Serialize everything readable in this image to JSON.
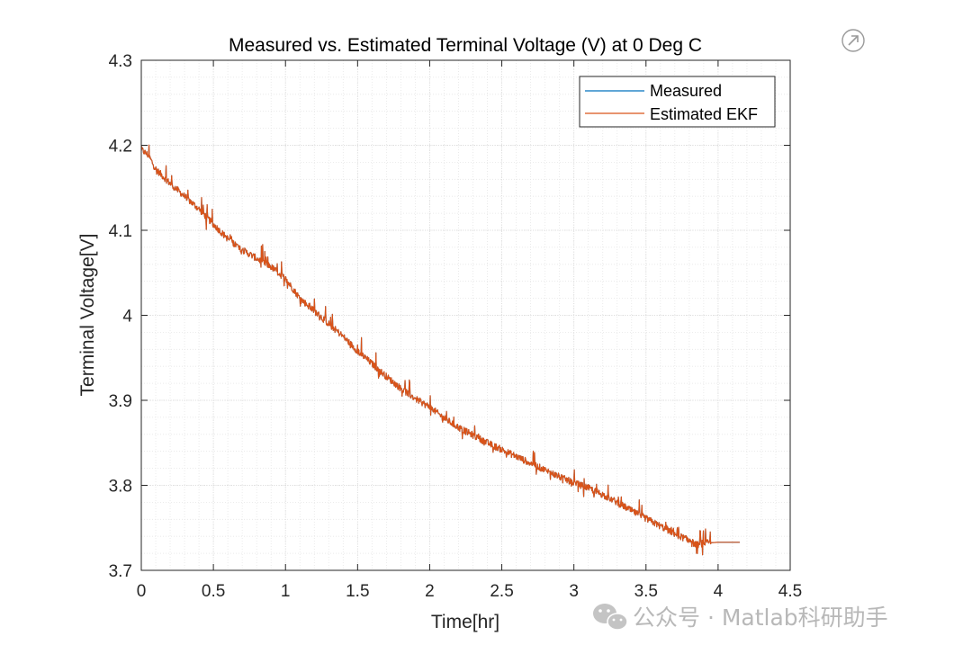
{
  "chart_data": {
    "type": "line",
    "title": "Measured vs. Estimated Terminal Voltage (V) at 0 Deg C",
    "xlabel": "Time[hr]",
    "ylabel": "Terminal Voltage[V]",
    "xlim": [
      0,
      4.5
    ],
    "ylim": [
      3.7,
      4.3
    ],
    "xticks": [
      0,
      0.5,
      1,
      1.5,
      2,
      2.5,
      3,
      3.5,
      4,
      4.5
    ],
    "xtick_labels": [
      "0",
      "0.5",
      "1",
      "1.5",
      "2",
      "2.5",
      "3",
      "3.5",
      "4",
      "4.5"
    ],
    "yticks": [
      3.7,
      3.8,
      3.9,
      4.0,
      4.1,
      4.2,
      4.3
    ],
    "ytick_labels": [
      "3.7",
      "3.8",
      "3.9",
      "4",
      "4.1",
      "4.2",
      "4.3"
    ],
    "grid": true,
    "minor_grid": true,
    "legend_position": "top-right",
    "series": [
      {
        "name": "Measured",
        "color": "#0072BD",
        "x": [
          0,
          0.05,
          0.1,
          0.2,
          0.3,
          0.4,
          0.5,
          0.6,
          0.7,
          0.8,
          0.9,
          1.0,
          1.1,
          1.2,
          1.3,
          1.4,
          1.5,
          1.6,
          1.7,
          1.8,
          1.9,
          2.0,
          2.1,
          2.2,
          2.3,
          2.4,
          2.5,
          2.6,
          2.7,
          2.8,
          2.9,
          3.0,
          3.1,
          3.2,
          3.3,
          3.4,
          3.5,
          3.6,
          3.7,
          3.8,
          3.85,
          3.9,
          4.0,
          4.15
        ],
        "y": [
          4.195,
          4.188,
          4.172,
          4.155,
          4.14,
          4.125,
          4.107,
          4.09,
          4.077,
          4.067,
          4.057,
          4.043,
          4.02,
          4.005,
          3.99,
          3.975,
          3.958,
          3.943,
          3.928,
          3.914,
          3.902,
          3.892,
          3.879,
          3.868,
          3.859,
          3.85,
          3.842,
          3.834,
          3.826,
          3.818,
          3.81,
          3.803,
          3.797,
          3.789,
          3.78,
          3.77,
          3.761,
          3.752,
          3.743,
          3.735,
          3.73,
          3.732,
          3.733,
          3.733
        ]
      },
      {
        "name": "Estimated EKF",
        "color": "#D95319",
        "x": [
          0,
          0.05,
          0.1,
          0.2,
          0.3,
          0.4,
          0.5,
          0.6,
          0.7,
          0.8,
          0.9,
          1.0,
          1.1,
          1.2,
          1.3,
          1.4,
          1.5,
          1.6,
          1.7,
          1.8,
          1.9,
          2.0,
          2.1,
          2.2,
          2.3,
          2.4,
          2.5,
          2.6,
          2.7,
          2.8,
          2.9,
          3.0,
          3.1,
          3.2,
          3.3,
          3.4,
          3.5,
          3.6,
          3.7,
          3.8,
          3.85,
          3.9,
          4.0,
          4.15
        ],
        "y": [
          4.195,
          4.188,
          4.172,
          4.155,
          4.14,
          4.125,
          4.107,
          4.09,
          4.077,
          4.067,
          4.057,
          4.043,
          4.02,
          4.005,
          3.99,
          3.975,
          3.958,
          3.943,
          3.928,
          3.914,
          3.902,
          3.892,
          3.879,
          3.868,
          3.859,
          3.85,
          3.842,
          3.834,
          3.826,
          3.818,
          3.81,
          3.803,
          3.797,
          3.789,
          3.78,
          3.77,
          3.761,
          3.752,
          3.743,
          3.735,
          3.73,
          3.732,
          3.733,
          3.733
        ]
      }
    ]
  },
  "watermark": {
    "text": "公众号 · Matlab科研助手",
    "icon": "wechat-icon"
  },
  "toolbar": {
    "icon": "export-arrow-icon"
  }
}
